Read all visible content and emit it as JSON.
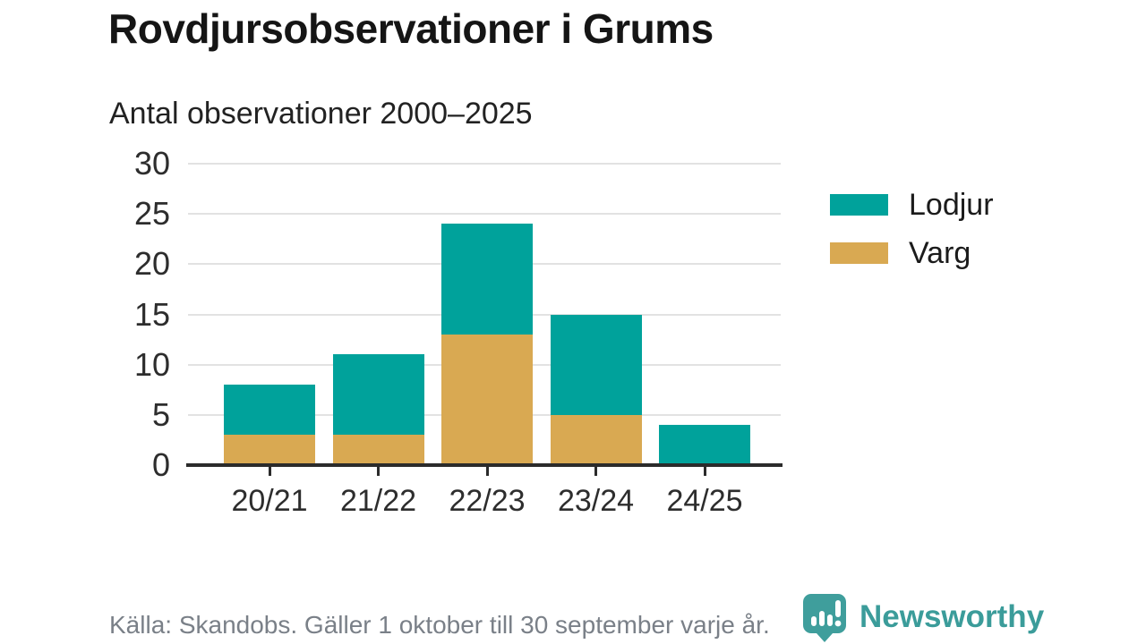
{
  "header": {
    "title": "Rovdjursobservationer i Grums",
    "subtitle": "Antal observationer 2000–2025"
  },
  "chart_data": {
    "type": "bar",
    "stacked": true,
    "title": "Rovdjursobservationer i Grums",
    "subtitle": "Antal observationer 2000–2025",
    "categories": [
      "20/21",
      "21/22",
      "22/23",
      "23/24",
      "24/25"
    ],
    "series": [
      {
        "name": "Varg",
        "color": "#d9a952",
        "values": [
          3,
          3,
          13,
          5,
          0
        ]
      },
      {
        "name": "Lodjur",
        "color": "#00a29b",
        "values": [
          5,
          8,
          11,
          10,
          4
        ]
      }
    ],
    "totals": [
      8,
      11,
      24,
      15,
      4
    ],
    "xlabel": "",
    "ylabel": "",
    "ylim": [
      0,
      30
    ],
    "y_ticks": [
      0,
      5,
      10,
      15,
      20,
      25,
      30
    ],
    "grid": "horizontal",
    "legend_position": "right",
    "legend": [
      {
        "label": "Lodjur",
        "color": "#00a29b"
      },
      {
        "label": "Varg",
        "color": "#d9a952"
      }
    ]
  },
  "footer": {
    "source": "Källa: Skandobs. Gäller 1 oktober till 30 september varje år.",
    "brand": "Newsworthy"
  },
  "colors": {
    "lodjur": "#00a29b",
    "varg": "#d9a952",
    "gridline": "#e2e2e2",
    "axis": "#2b2b2b",
    "source_text": "#7a8088",
    "brand_teal": "#3f9e9c"
  }
}
